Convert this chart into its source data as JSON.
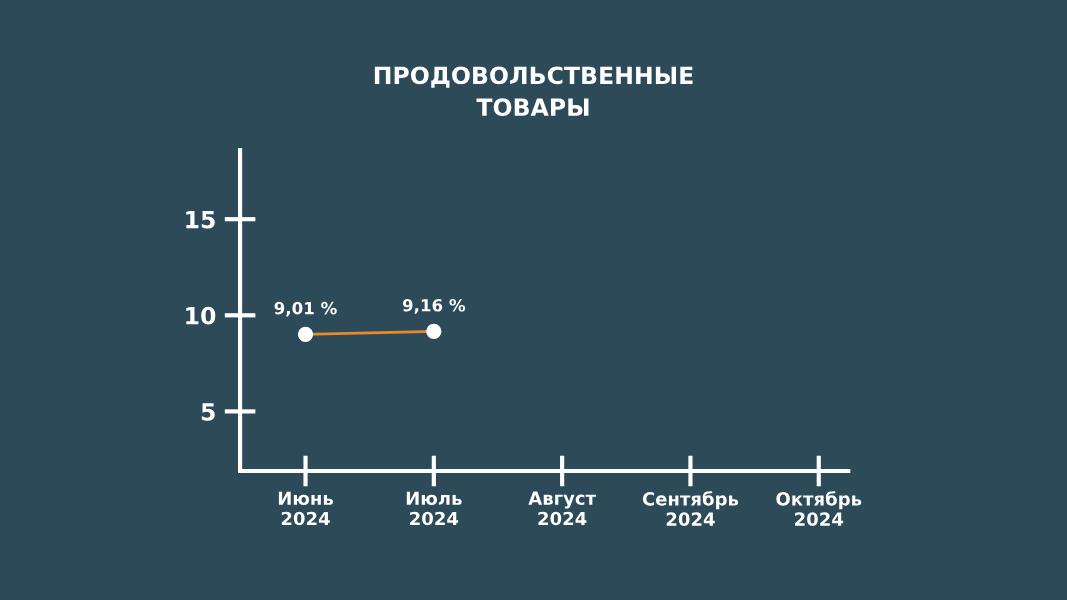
{
  "chart_data": {
    "type": "line",
    "title": "ПРОДОВОЛЬСТВЕННЫЕ\nТОВАРЫ",
    "categories": [
      "Июнь\n2024",
      "Июль\n2024",
      "Август\n2024",
      "Сентябрь\n2024",
      "Октябрь\n2024"
    ],
    "series": [
      {
        "color": "#e8892b",
        "values": [
          9.01,
          9.16,
          null,
          null,
          null
        ],
        "value_labels": [
          "9,01 %",
          "9,16 %",
          null,
          null,
          null
        ]
      }
    ],
    "ylim": [
      1.9,
      18.6
    ],
    "yticks": [
      5,
      10,
      15
    ],
    "grid": false,
    "legend": false,
    "marker": "circle",
    "line_style": "solid"
  }
}
